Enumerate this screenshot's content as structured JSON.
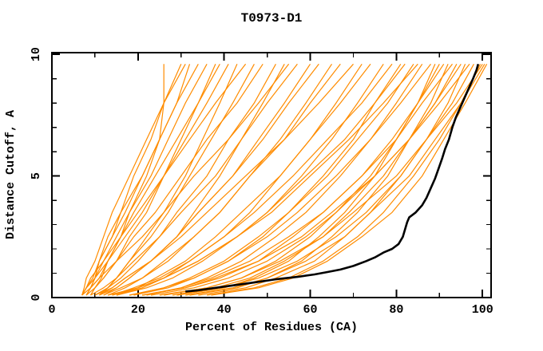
{
  "window": {
    "title": "T0973-D1"
  },
  "colors": {
    "background": "#ffffff",
    "axis": "#000000",
    "model_line": "#ff8c00",
    "highlight_line": "#000000"
  },
  "chart_data": {
    "type": "line",
    "title": "T0973-D1",
    "xlabel": "Percent of Residues (CA)",
    "ylabel": "Distance Cutoff, A",
    "xlim": [
      0,
      102
    ],
    "ylim": [
      0,
      10.07
    ],
    "grid": false,
    "legend": "none",
    "x_ticks_major": [
      0,
      20,
      40,
      60,
      80,
      100
    ],
    "x_ticks_minor": [
      10,
      30,
      50,
      70,
      90
    ],
    "x_tick_labels": [
      "0",
      "20",
      "40",
      "60",
      "80",
      "100"
    ],
    "y_ticks_major": [
      0,
      5,
      10
    ],
    "y_ticks_minor": [
      1,
      2,
      3,
      4,
      6,
      7,
      8,
      9
    ],
    "y_tick_labels": [
      "0",
      "5",
      "10"
    ],
    "y_samples": [
      0.1,
      0.4,
      0.8,
      1.5,
      2.5,
      3.5,
      5.0,
      6.5,
      8.0,
      9.6
    ],
    "orange_series": [
      {
        "x": [
          7,
          8,
          9.5,
          11,
          13,
          16,
          21,
          25,
          26,
          26
        ]
      },
      {
        "x": [
          8,
          9,
          10,
          11,
          14,
          16,
          19,
          23,
          26,
          30
        ]
      },
      {
        "x": [
          7,
          7.5,
          8,
          10,
          12,
          14,
          18,
          22,
          26,
          31
        ]
      },
      {
        "x": [
          9,
          10,
          11.5,
          13,
          16,
          18,
          22,
          25,
          29,
          32
        ]
      },
      {
        "x": [
          8,
          9,
          10,
          11,
          14,
          17,
          21,
          25,
          29,
          34
        ]
      },
      {
        "x": [
          7,
          8,
          9,
          12,
          15,
          18,
          23,
          27,
          31,
          36
        ]
      },
      {
        "x": [
          8,
          10,
          12,
          15,
          18,
          22,
          26,
          30,
          34,
          38
        ]
      },
      {
        "x": [
          8,
          9,
          11,
          13,
          16,
          19,
          24,
          29,
          34,
          39
        ]
      },
      {
        "x": [
          7,
          8,
          10,
          13,
          17,
          21,
          26,
          31,
          36,
          41
        ]
      },
      {
        "x": [
          10,
          13,
          15,
          18,
          22,
          26,
          31,
          35,
          39,
          43
        ]
      },
      {
        "x": [
          7,
          8,
          10,
          12,
          16,
          20,
          26,
          32,
          38,
          45
        ]
      },
      {
        "x": [
          11,
          13,
          15,
          18,
          23,
          27,
          32,
          37,
          42,
          47
        ]
      },
      {
        "x": [
          9,
          10,
          12,
          15,
          19,
          24,
          30,
          36,
          43,
          49
        ]
      },
      {
        "x": [
          9,
          12,
          15,
          19,
          25,
          29,
          36,
          41,
          47,
          52
        ]
      },
      {
        "x": [
          11,
          15,
          18,
          23,
          29,
          33,
          39,
          44,
          49,
          54
        ]
      },
      {
        "x": [
          7,
          9,
          11,
          15,
          21,
          26,
          33,
          41,
          48,
          55
        ]
      },
      {
        "x": [
          10,
          13,
          16,
          20,
          25,
          30,
          38,
          44,
          50,
          57
        ]
      },
      {
        "x": [
          10,
          14,
          17,
          23,
          29,
          34,
          42,
          48,
          54,
          60
        ]
      },
      {
        "x": [
          12,
          15,
          18,
          23,
          29,
          34,
          42,
          49,
          55,
          62
        ]
      },
      {
        "x": [
          12,
          16,
          21,
          27,
          33,
          39,
          46,
          53,
          59,
          65
        ]
      },
      {
        "x": [
          13,
          17,
          21,
          26,
          33,
          39,
          46,
          54,
          60,
          67
        ]
      },
      {
        "x": [
          11,
          14,
          17,
          23,
          30,
          36,
          45,
          54,
          62,
          70
        ]
      },
      {
        "x": [
          15,
          21,
          26,
          32,
          40,
          46,
          53,
          60,
          66,
          72
        ]
      },
      {
        "x": [
          15,
          20,
          24,
          31,
          38,
          44,
          53,
          60,
          67,
          74
        ]
      },
      {
        "x": [
          15,
          22,
          28,
          35,
          43,
          50,
          58,
          65,
          71,
          77
        ]
      },
      {
        "x": [
          14,
          19,
          25,
          32,
          40,
          47,
          56,
          64,
          72,
          79
        ]
      },
      {
        "x": [
          19,
          27,
          33,
          41,
          49,
          55,
          63,
          70,
          75,
          81
        ]
      },
      {
        "x": [
          13,
          20,
          26,
          34,
          43,
          50,
          59,
          68,
          75,
          82
        ]
      },
      {
        "x": [
          18,
          26,
          32,
          40,
          48,
          55,
          64,
          71,
          78,
          84
        ]
      },
      {
        "x": [
          14,
          20,
          26,
          34,
          43,
          51,
          60,
          69,
          77,
          85
        ]
      },
      {
        "x": [
          22,
          30,
          36,
          44,
          52,
          59,
          67,
          74,
          80,
          86
        ]
      },
      {
        "x": [
          18,
          26,
          33,
          41,
          50,
          57,
          66,
          74,
          81,
          88
        ]
      },
      {
        "x": [
          29,
          40,
          47,
          55,
          62,
          68,
          75,
          80,
          85,
          89
        ]
      },
      {
        "x": [
          26,
          36,
          44,
          52,
          60,
          66,
          74,
          80,
          85,
          90
        ]
      },
      {
        "x": [
          21,
          31,
          39,
          48,
          56,
          63,
          72,
          79,
          85,
          91
        ]
      },
      {
        "x": [
          32,
          43,
          50,
          58,
          65,
          71,
          78,
          83,
          88,
          92
        ]
      },
      {
        "x": [
          21,
          30,
          37,
          46,
          55,
          63,
          72,
          80,
          86,
          93
        ]
      },
      {
        "x": [
          28,
          38,
          46,
          54,
          63,
          69,
          77,
          83,
          89,
          94
        ]
      },
      {
        "x": [
          23,
          33,
          41,
          50,
          59,
          66,
          75,
          83,
          89,
          95
        ]
      },
      {
        "x": [
          34,
          45,
          52,
          61,
          68,
          74,
          81,
          87,
          92,
          96
        ]
      },
      {
        "x": [
          21,
          31,
          38,
          48,
          58,
          65,
          75,
          83,
          90,
          97
        ]
      },
      {
        "x": [
          29,
          40,
          48,
          57,
          66,
          73,
          81,
          87,
          93,
          98
        ]
      },
      {
        "x": [
          36,
          47,
          55,
          63,
          71,
          77,
          84,
          90,
          95,
          99.5
        ]
      },
      {
        "x": [
          25,
          36,
          44,
          53,
          63,
          70,
          80,
          87,
          94,
          100
        ]
      },
      {
        "x": [
          31,
          42,
          50,
          59,
          68,
          74,
          83,
          89,
          95,
          100.5
        ]
      },
      {
        "x": [
          37,
          48,
          56,
          64,
          72,
          79,
          86,
          91,
          96,
          101
        ]
      }
    ],
    "highlight_series": {
      "points": [
        [
          31,
          0.25
        ],
        [
          34,
          0.3
        ],
        [
          38,
          0.4
        ],
        [
          42,
          0.5
        ],
        [
          47,
          0.62
        ],
        [
          52,
          0.75
        ],
        [
          57,
          0.85
        ],
        [
          61,
          0.95
        ],
        [
          64,
          1.05
        ],
        [
          67,
          1.15
        ],
        [
          70,
          1.3
        ],
        [
          73,
          1.5
        ],
        [
          75,
          1.65
        ],
        [
          77,
          1.85
        ],
        [
          79,
          2.0
        ],
        [
          80.5,
          2.2
        ],
        [
          81.5,
          2.5
        ],
        [
          82,
          2.8
        ],
        [
          82.5,
          3.1
        ],
        [
          83,
          3.3
        ],
        [
          84.5,
          3.5
        ],
        [
          86,
          3.8
        ],
        [
          87,
          4.1
        ],
        [
          88,
          4.5
        ],
        [
          89,
          4.9
        ],
        [
          89.8,
          5.3
        ],
        [
          90.6,
          5.7
        ],
        [
          91.3,
          6.1
        ],
        [
          92.2,
          6.5
        ],
        [
          93,
          7.0
        ],
        [
          93.8,
          7.4
        ],
        [
          94.8,
          7.8
        ],
        [
          95.8,
          8.2
        ],
        [
          96.8,
          8.6
        ],
        [
          97.8,
          9.0
        ],
        [
          98.6,
          9.35
        ],
        [
          99,
          9.6
        ]
      ]
    }
  }
}
